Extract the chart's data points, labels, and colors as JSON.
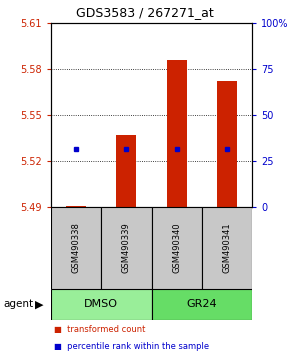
{
  "title": "GDS3583 / 267271_at",
  "samples": [
    "GSM490338",
    "GSM490339",
    "GSM490340",
    "GSM490341"
  ],
  "transformed_counts": [
    5.4905,
    5.537,
    5.586,
    5.572
  ],
  "percentile_values": [
    5.528,
    5.528,
    5.528,
    5.528
  ],
  "bar_bottom": 5.49,
  "ylim_left": [
    5.49,
    5.61
  ],
  "ylim_right": [
    0,
    100
  ],
  "yticks_left": [
    5.49,
    5.52,
    5.55,
    5.58,
    5.61
  ],
  "yticks_right": [
    0,
    25,
    50,
    75,
    100
  ],
  "bar_color": "#CC2200",
  "dot_color": "#0000CC",
  "sample_box_color": "#C8C8C8",
  "group_info": [
    {
      "label": "DMSO",
      "start": 0,
      "end": 1,
      "color": "#99EE99"
    },
    {
      "label": "GR24",
      "start": 2,
      "end": 3,
      "color": "#66DD66"
    }
  ],
  "bar_width": 0.4
}
